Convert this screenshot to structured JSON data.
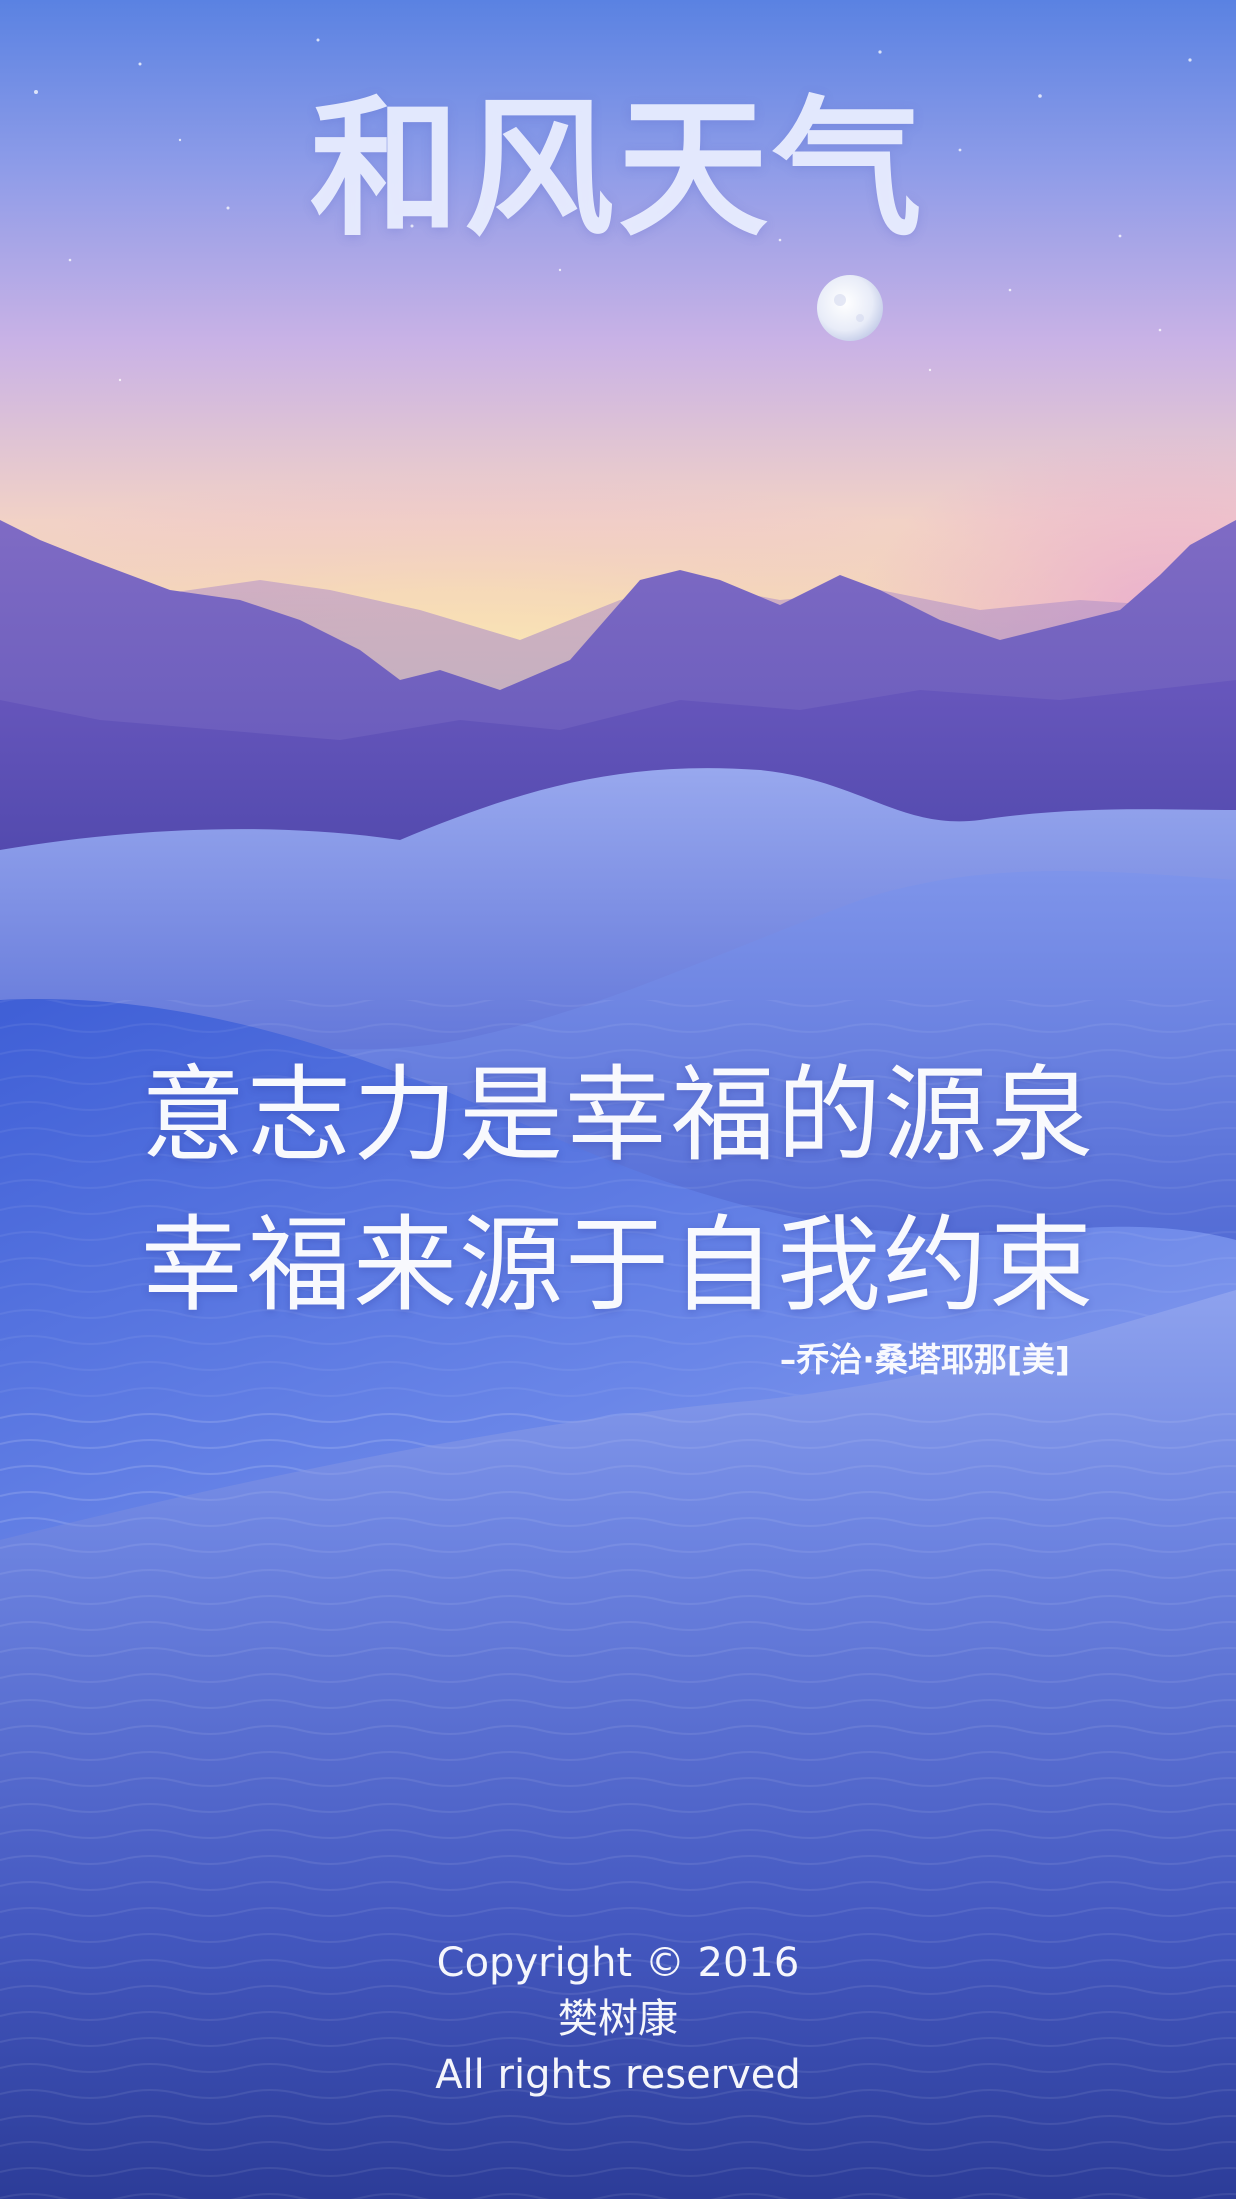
{
  "app": {
    "title": "和风天气"
  },
  "quote": {
    "lines": [
      "意志力是幸福的源泉",
      "幸福来源于自我约束"
    ],
    "author": "–乔治·桑塔耶那[美]"
  },
  "footer": {
    "copyright": "Copyright © 2016",
    "name": "樊树康",
    "rights": "All rights reserved"
  },
  "colors": {
    "sky_top": "#5a7fe0",
    "sky_horizon": "#f7e2b0",
    "sky_pink": "#e3a9d8",
    "mountains": "#5a4fb8",
    "dunes": "#5b78e0",
    "dunes_dark": "#3a4fb8"
  },
  "icons": {
    "moon": "moon-icon"
  }
}
